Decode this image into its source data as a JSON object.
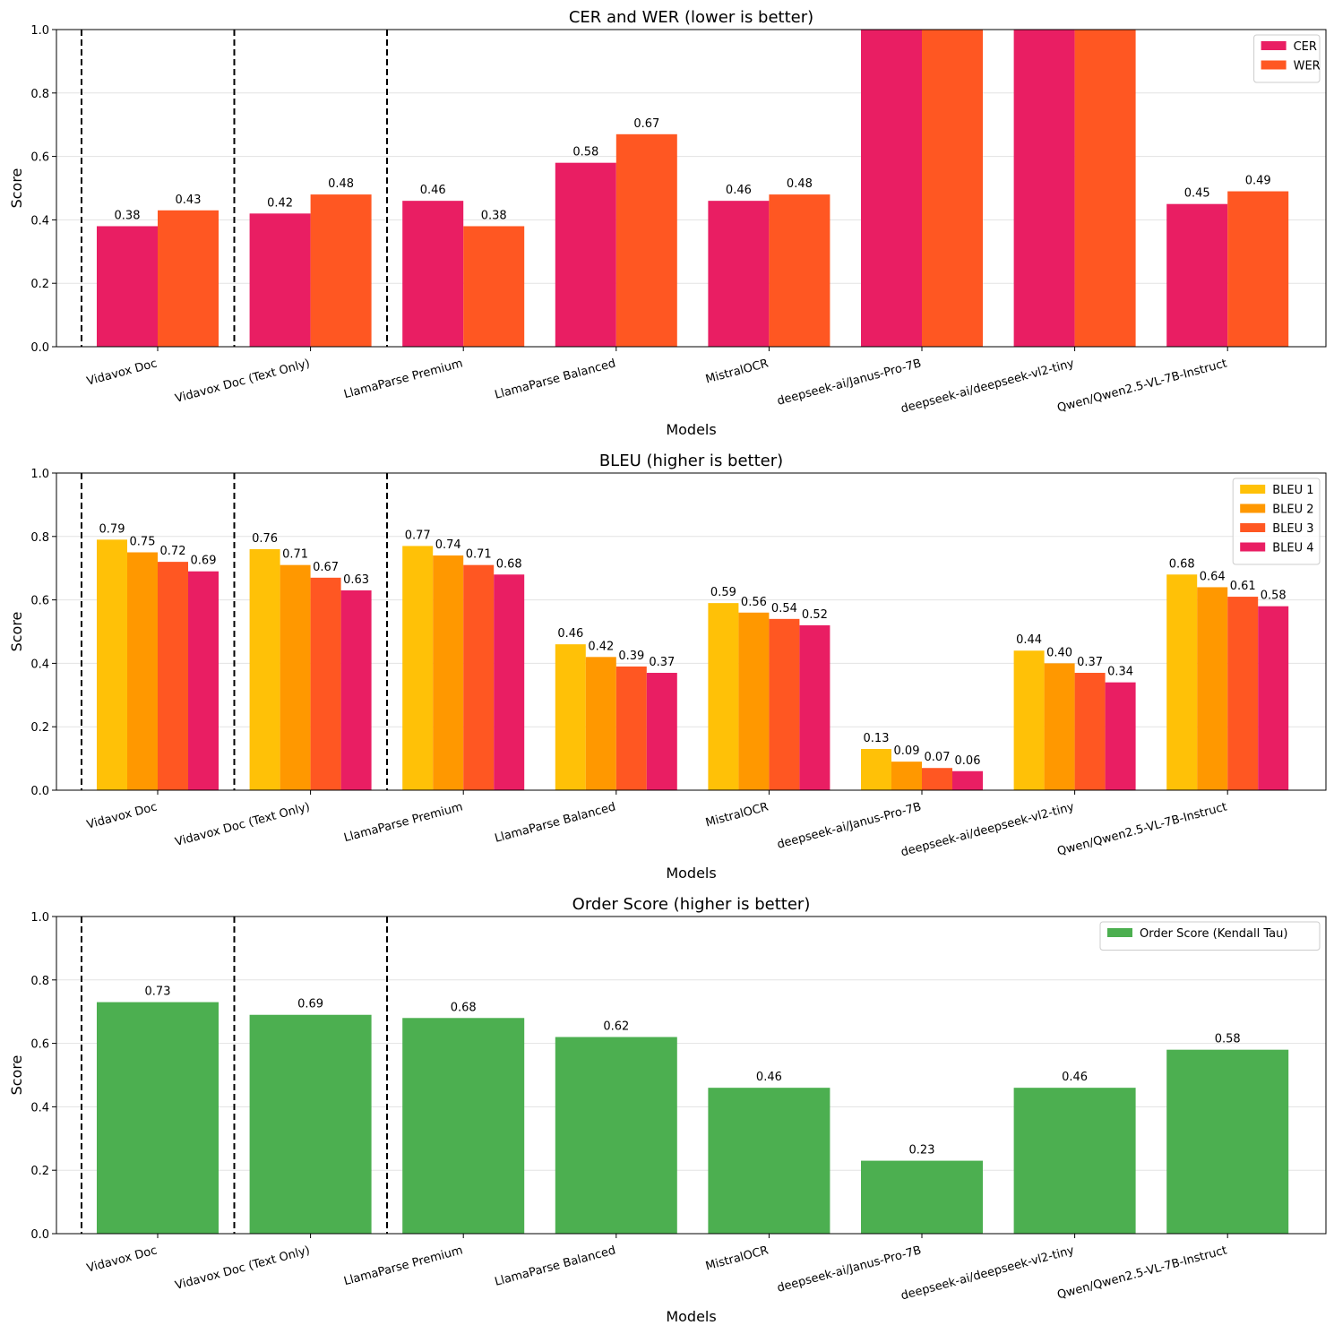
{
  "chart_data": [
    {
      "type": "bar",
      "title": "CER and WER (lower is better)",
      "xlabel": "Models",
      "ylabel": "Score",
      "ylim": [
        0,
        1
      ],
      "yticks": [
        "0.0",
        "0.2",
        "0.4",
        "0.6",
        "0.8",
        "1.0"
      ],
      "grid": "horizontal",
      "legend": "top-right",
      "separators_after": [
        0,
        1
      ],
      "categories": [
        "Vidavox Doc",
        "Vidavox Doc (Text Only)",
        "LlamaParse Premium",
        "LlamaParse Balanced",
        "MistralOCR",
        "deepseek-ai/Janus-Pro-7B",
        "deepseek-ai/deepseek-vl2-tiny",
        "Qwen/Qwen2.5-VL-7B-Instruct"
      ],
      "series": [
        {
          "name": "CER",
          "color": "#e91e63",
          "values": [
            0.38,
            0.42,
            0.46,
            0.58,
            0.46,
            1.0,
            1.0,
            0.45
          ],
          "labels": [
            "0.38",
            "0.42",
            "0.46",
            "0.58",
            "0.46",
            "",
            "",
            "0.45"
          ]
        },
        {
          "name": "WER",
          "color": "#ff5722",
          "values": [
            0.43,
            0.48,
            0.38,
            0.67,
            0.48,
            1.0,
            1.0,
            0.49
          ],
          "labels": [
            "0.43",
            "0.48",
            "0.38",
            "0.67",
            "0.48",
            "",
            "",
            "0.49"
          ]
        }
      ]
    },
    {
      "type": "bar",
      "title": "BLEU (higher is better)",
      "xlabel": "Models",
      "ylabel": "Score",
      "ylim": [
        0,
        1
      ],
      "yticks": [
        "0.0",
        "0.2",
        "0.4",
        "0.6",
        "0.8",
        "1.0"
      ],
      "grid": "horizontal",
      "legend": "top-right",
      "separators_after": [
        0,
        1
      ],
      "categories": [
        "Vidavox Doc",
        "Vidavox Doc (Text Only)",
        "LlamaParse Premium",
        "LlamaParse Balanced",
        "MistralOCR",
        "deepseek-ai/Janus-Pro-7B",
        "deepseek-ai/deepseek-vl2-tiny",
        "Qwen/Qwen2.5-VL-7B-Instruct"
      ],
      "series": [
        {
          "name": "BLEU 1",
          "color": "#ffc107",
          "values": [
            0.79,
            0.76,
            0.77,
            0.46,
            0.59,
            0.13,
            0.44,
            0.68
          ],
          "labels": [
            "0.79",
            "0.76",
            "0.77",
            "0.46",
            "0.59",
            "0.13",
            "0.44",
            "0.68"
          ]
        },
        {
          "name": "BLEU 2",
          "color": "#ff9800",
          "values": [
            0.75,
            0.71,
            0.74,
            0.42,
            0.56,
            0.09,
            0.4,
            0.64
          ],
          "labels": [
            "0.75",
            "0.71",
            "0.74",
            "0.42",
            "0.56",
            "0.09",
            "0.40",
            "0.64"
          ]
        },
        {
          "name": "BLEU 3",
          "color": "#ff5722",
          "values": [
            0.72,
            0.67,
            0.71,
            0.39,
            0.54,
            0.07,
            0.37,
            0.61
          ],
          "labels": [
            "0.72",
            "0.67",
            "0.71",
            "0.39",
            "0.54",
            "0.07",
            "0.37",
            "0.61"
          ]
        },
        {
          "name": "BLEU 4",
          "color": "#e91e63",
          "values": [
            0.69,
            0.63,
            0.68,
            0.37,
            0.52,
            0.06,
            0.34,
            0.58
          ],
          "labels": [
            "0.69",
            "0.63",
            "0.68",
            "0.37",
            "0.52",
            "0.06",
            "0.34",
            "0.58"
          ]
        }
      ]
    },
    {
      "type": "bar",
      "title": "Order Score (higher is better)",
      "xlabel": "Models",
      "ylabel": "Score",
      "ylim": [
        0,
        1
      ],
      "yticks": [
        "0.0",
        "0.2",
        "0.4",
        "0.6",
        "0.8",
        "1.0"
      ],
      "grid": "horizontal",
      "legend": "top-right",
      "separators_after": [
        0,
        1
      ],
      "categories": [
        "Vidavox Doc",
        "Vidavox Doc (Text Only)",
        "LlamaParse Premium",
        "LlamaParse Balanced",
        "MistralOCR",
        "deepseek-ai/Janus-Pro-7B",
        "deepseek-ai/deepseek-vl2-tiny",
        "Qwen/Qwen2.5-VL-7B-Instruct"
      ],
      "series": [
        {
          "name": "Order Score (Kendall Tau)",
          "color": "#4caf50",
          "values": [
            0.73,
            0.69,
            0.68,
            0.62,
            0.46,
            0.23,
            0.46,
            0.58
          ],
          "labels": [
            "0.73",
            "0.69",
            "0.68",
            "0.62",
            "0.46",
            "0.23",
            "0.46",
            "0.58"
          ]
        }
      ]
    }
  ]
}
